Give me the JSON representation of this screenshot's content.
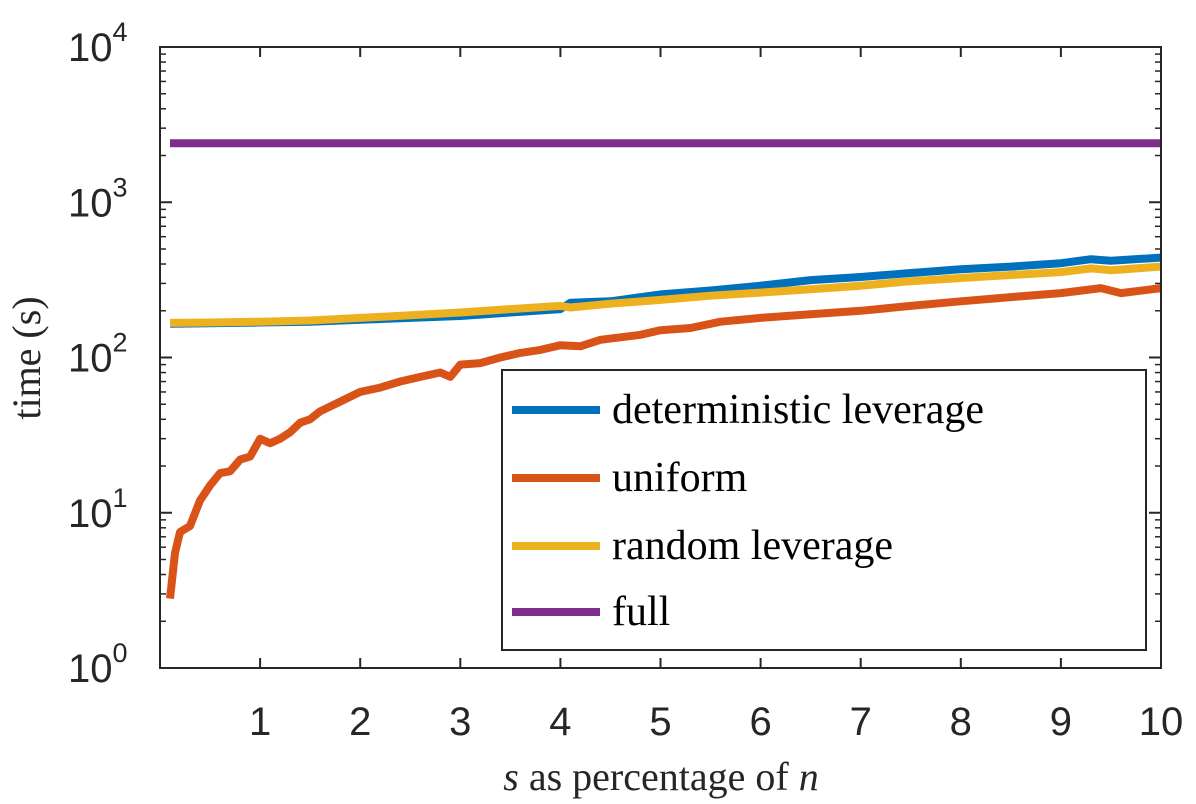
{
  "chart_data": {
    "type": "line",
    "yscale": "log",
    "xlabel_var": "s",
    "xlabel_mid": " as percentage of ",
    "xlabel_var2": "n",
    "ylabel": "time (s)",
    "xlim": [
      0,
      10
    ],
    "ylim": [
      1,
      10000
    ],
    "xticks": [
      "1",
      "2",
      "3",
      "4",
      "5",
      "6",
      "7",
      "8",
      "9",
      "10"
    ],
    "yticks": [
      {
        "base": "10",
        "exp": "0",
        "value": 1
      },
      {
        "base": "10",
        "exp": "1",
        "value": 10
      },
      {
        "base": "10",
        "exp": "2",
        "value": 100
      },
      {
        "base": "10",
        "exp": "3",
        "value": 1000
      },
      {
        "base": "10",
        "exp": "4",
        "value": 10000
      }
    ],
    "legend_position": "bottom-right",
    "series": [
      {
        "name": "deterministic leverage",
        "color": "#0072BD",
        "x": [
          0.1,
          0.5,
          1,
          1.5,
          2,
          2.5,
          3,
          3.5,
          4,
          4.1,
          4.5,
          5,
          5.5,
          6,
          6.5,
          7,
          7.5,
          8,
          8.5,
          9,
          9.3,
          9.5,
          10
        ],
        "y": [
          165,
          166,
          168,
          170,
          175,
          180,
          185,
          195,
          205,
          225,
          230,
          255,
          270,
          290,
          315,
          330,
          350,
          370,
          385,
          405,
          430,
          420,
          440
        ]
      },
      {
        "name": "uniform",
        "color": "#D95319",
        "x": [
          0.1,
          0.15,
          0.2,
          0.3,
          0.4,
          0.5,
          0.6,
          0.7,
          0.8,
          0.9,
          1.0,
          1.1,
          1.2,
          1.3,
          1.4,
          1.5,
          1.6,
          1.8,
          2.0,
          2.2,
          2.4,
          2.6,
          2.8,
          2.9,
          3.0,
          3.2,
          3.4,
          3.6,
          3.8,
          4.0,
          4.2,
          4.4,
          4.6,
          4.8,
          5.0,
          5.3,
          5.6,
          6.0,
          6.5,
          7.0,
          7.5,
          8.0,
          8.5,
          9.0,
          9.4,
          9.6,
          10.0
        ],
        "y": [
          2.8,
          5.5,
          7.5,
          8.2,
          12,
          15,
          18,
          18.5,
          22,
          23,
          30,
          28,
          30,
          33,
          38,
          40,
          45,
          52,
          60,
          64,
          70,
          75,
          80,
          75,
          90,
          92,
          100,
          107,
          112,
          120,
          118,
          130,
          135,
          140,
          150,
          155,
          170,
          180,
          190,
          200,
          215,
          230,
          245,
          260,
          280,
          260,
          280
        ]
      },
      {
        "name": "random leverage",
        "color": "#EDB120",
        "x": [
          0.1,
          0.5,
          1,
          1.5,
          2,
          2.5,
          3,
          3.5,
          4,
          4.1,
          4.5,
          5,
          5.5,
          6,
          6.5,
          7,
          7.5,
          8,
          8.5,
          9,
          9.3,
          9.5,
          10
        ],
        "y": [
          167,
          168,
          170,
          173,
          180,
          187,
          195,
          205,
          215,
          210,
          222,
          235,
          250,
          262,
          275,
          290,
          310,
          325,
          340,
          355,
          375,
          365,
          385
        ]
      },
      {
        "name": "full",
        "color": "#7E2F8E",
        "x": [
          0.1,
          10
        ],
        "y": [
          2400,
          2400
        ]
      }
    ]
  }
}
